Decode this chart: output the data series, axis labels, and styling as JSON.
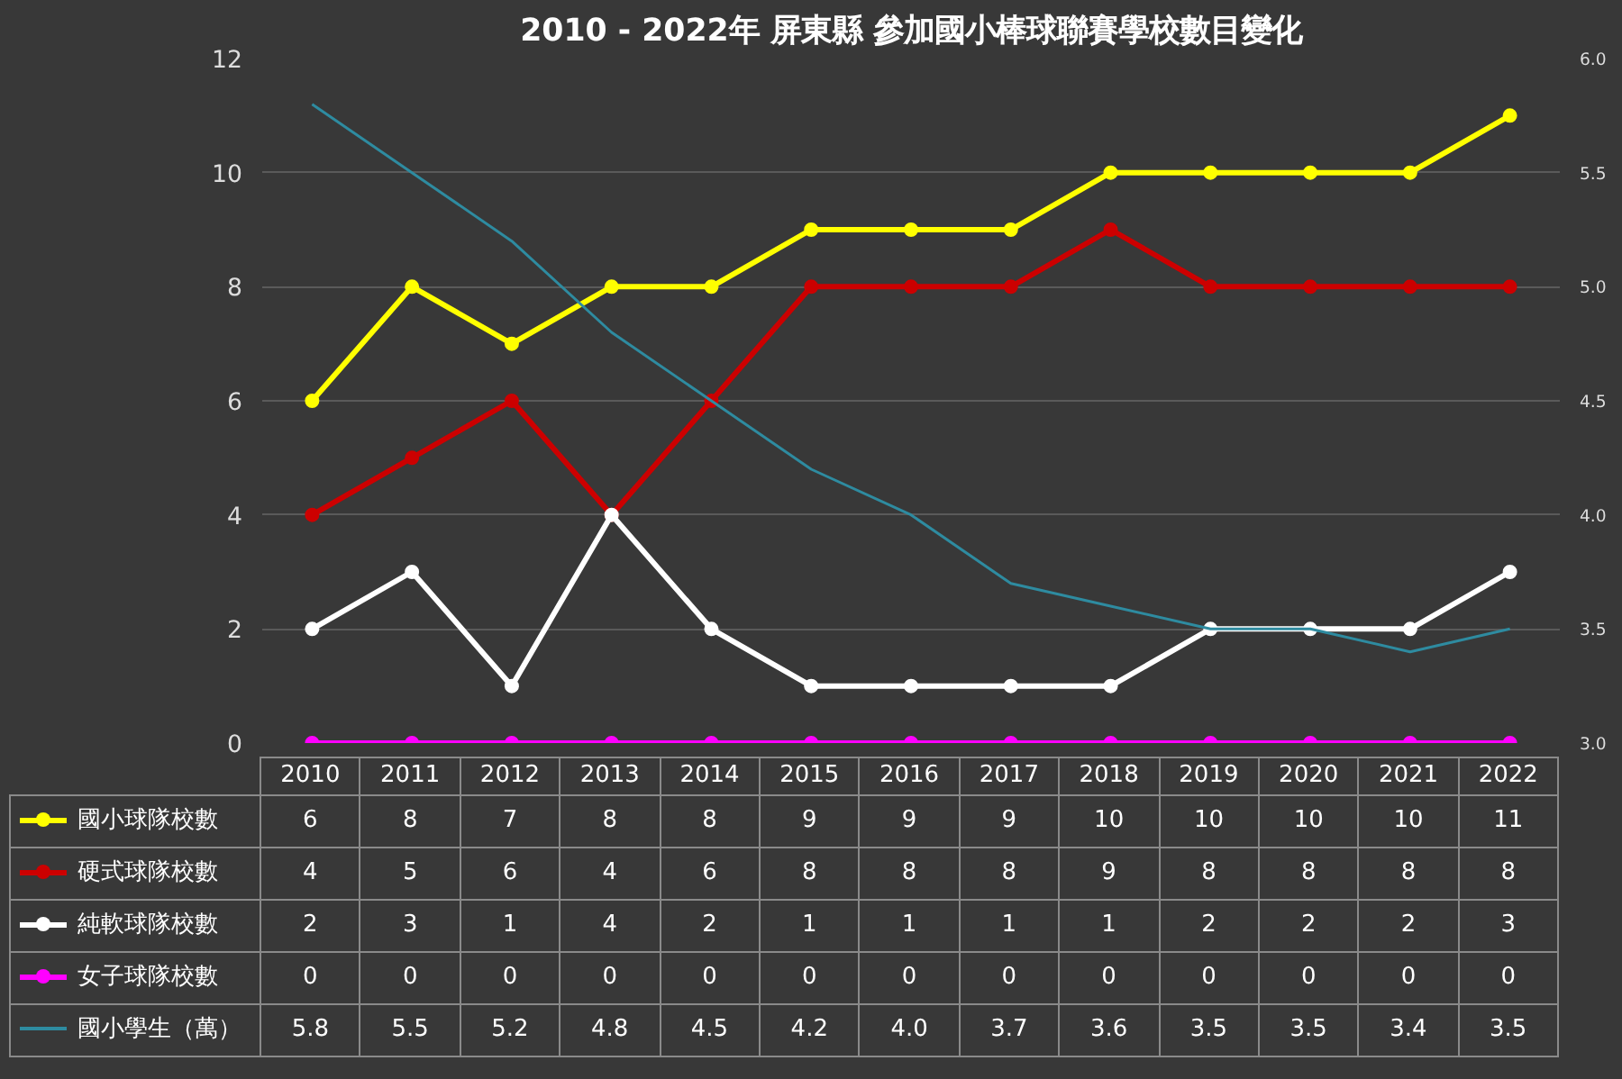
{
  "chart_data": {
    "type": "line",
    "title": "2010 - 2022年 屏東縣 參加國小棒球聯賽學校數目變化",
    "categories": [
      "2010",
      "2011",
      "2012",
      "2013",
      "2014",
      "2015",
      "2016",
      "2017",
      "2018",
      "2019",
      "2020",
      "2021",
      "2022"
    ],
    "series": [
      {
        "name": "國小球隊校數",
        "color": "#ffff00",
        "marker": "circle",
        "values": [
          6,
          8,
          7,
          8,
          8,
          9,
          9,
          9,
          10,
          10,
          10,
          10,
          11
        ]
      },
      {
        "name": "硬式球隊校數",
        "color": "#cc0000",
        "marker": "circle",
        "values": [
          4,
          5,
          6,
          4,
          6,
          8,
          8,
          8,
          9,
          8,
          8,
          8,
          8
        ]
      },
      {
        "name": "純軟球隊校數",
        "color": "#ffffff",
        "marker": "circle",
        "values": [
          2,
          3,
          1,
          4,
          2,
          1,
          1,
          1,
          1,
          2,
          2,
          2,
          3
        ]
      },
      {
        "name": "女子球隊校數",
        "color": "#ff00ff",
        "marker": "circle",
        "values": [
          0,
          0,
          0,
          0,
          0,
          0,
          0,
          0,
          0,
          0,
          0,
          0,
          0
        ]
      },
      {
        "name": "國小學生（萬）",
        "color": "#2e8ba0",
        "marker": "none",
        "axis": "y2",
        "values": [
          5.8,
          5.5,
          5.2,
          4.8,
          4.5,
          4.2,
          4.0,
          3.7,
          3.6,
          3.5,
          3.5,
          3.4,
          3.5
        ],
        "value_labels": [
          "5.8",
          "5.5",
          "5.2",
          "4.8",
          "4.5",
          "4.2",
          "4.0",
          "3.7",
          "3.6",
          "3.5",
          "3.5",
          "3.4",
          "3.5"
        ]
      }
    ],
    "ylim": [
      0,
      12
    ],
    "yticks": [
      0,
      2,
      4,
      6,
      8,
      10,
      12
    ],
    "y2lim": [
      3,
      6
    ],
    "y2ticks": [
      {
        "value": 3,
        "label": "3.0"
      },
      {
        "value": 3.5,
        "label": "3.5"
      },
      {
        "value": 4,
        "label": "4.0"
      },
      {
        "value": 4.5,
        "label": "4.5"
      },
      {
        "value": 5,
        "label": "5.0"
      },
      {
        "value": 5.5,
        "label": "5.5"
      },
      {
        "value": 6,
        "label": "6.0"
      }
    ],
    "grid": "y",
    "legend": "bottom",
    "data_labels": true
  }
}
